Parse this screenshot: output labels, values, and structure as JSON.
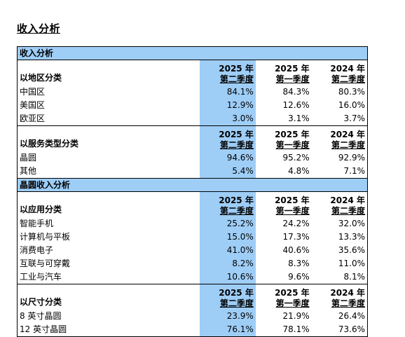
{
  "page_title": "收入分析",
  "sections": [
    {
      "title": "收入分析"
    },
    {
      "title": "晶圆收入分析"
    }
  ],
  "columns": [
    {
      "period": "2025 年",
      "quarter": "第二季度"
    },
    {
      "period": "2025 年",
      "quarter": "第一季度"
    },
    {
      "period": "2024 年",
      "quarter": "第二季度"
    }
  ],
  "groups": [
    {
      "label": "以地区分类",
      "rows": [
        {
          "name": "中国区",
          "values": [
            "84.1%",
            "84.3%",
            "80.3%"
          ]
        },
        {
          "name": "美国区",
          "values": [
            "12.9%",
            "12.6%",
            "16.0%"
          ]
        },
        {
          "name": "欧亚区",
          "values": [
            "3.0%",
            "3.1%",
            "3.7%"
          ]
        }
      ]
    },
    {
      "label": "以服务类型分类",
      "rows": [
        {
          "name": "晶圆",
          "values": [
            "94.6%",
            "95.2%",
            "92.9%"
          ]
        },
        {
          "name": "其他",
          "values": [
            "5.4%",
            "4.8%",
            "7.1%"
          ]
        }
      ]
    },
    {
      "label": "以应用分类",
      "rows": [
        {
          "name": "智能手机",
          "values": [
            "25.2%",
            "24.2%",
            "32.0%"
          ]
        },
        {
          "name": "计算机与平板",
          "values": [
            "15.0%",
            "17.3%",
            "13.3%"
          ]
        },
        {
          "name": "消费电子",
          "values": [
            "41.0%",
            "40.6%",
            "35.6%"
          ]
        },
        {
          "name": "互联与可穿戴",
          "values": [
            "8.2%",
            "8.3%",
            "11.0%"
          ]
        },
        {
          "name": "工业与汽车",
          "values": [
            "10.6%",
            "9.6%",
            "8.1%"
          ]
        }
      ]
    },
    {
      "label": "以尺寸分类",
      "rows": [
        {
          "name": "8 英寸晶圆",
          "values": [
            "23.9%",
            "21.9%",
            "26.4%"
          ]
        },
        {
          "name": "12 英寸晶圆",
          "values": [
            "76.1%",
            "78.1%",
            "73.6%"
          ]
        }
      ]
    }
  ],
  "colors": {
    "highlight": "#9ecdf6",
    "border": "#000000"
  }
}
